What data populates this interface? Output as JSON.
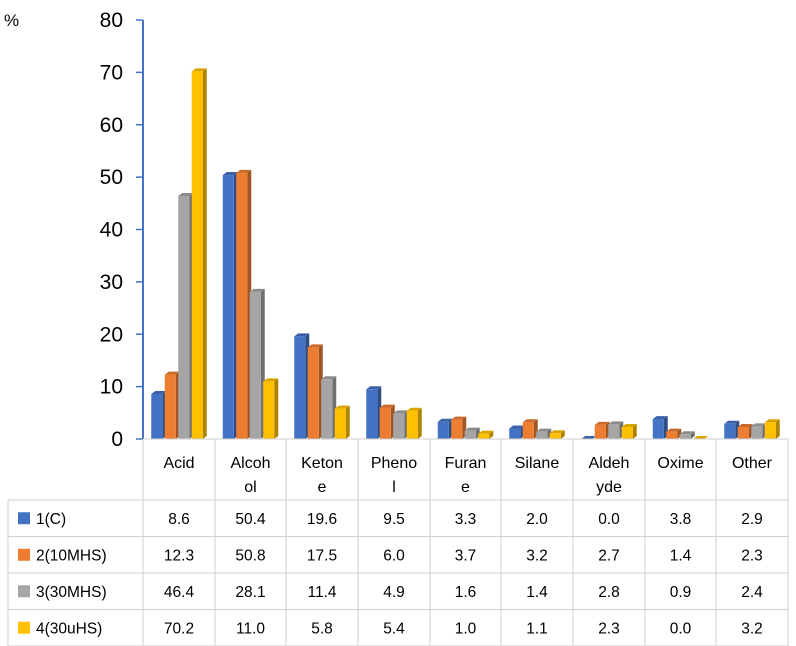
{
  "chart_data": {
    "type": "bar",
    "ylabel": "%",
    "ylim": [
      0,
      80
    ],
    "yticks": [
      "0",
      "10",
      "20",
      "30",
      "40",
      "50",
      "60",
      "70",
      "80"
    ],
    "categories": [
      "Acid",
      "Alcohol",
      "Ketone",
      "Phenol",
      "Furane",
      "Silane",
      "Aldehyde",
      "Oxime",
      "Other"
    ],
    "category_labels": [
      [
        "Acid"
      ],
      [
        "Alcoh",
        "ol"
      ],
      [
        "Keton",
        "e"
      ],
      [
        "Pheno",
        "l"
      ],
      [
        "Furan",
        "e"
      ],
      [
        "Silane"
      ],
      [
        "Aldeh",
        "yde"
      ],
      [
        "Oxime"
      ],
      [
        "Other"
      ]
    ],
    "series": [
      {
        "name": "1(C)",
        "color": "#4472C4",
        "values": [
          8.6,
          50.4,
          19.6,
          9.5,
          3.3,
          2.0,
          0.0,
          3.8,
          2.9
        ],
        "labels": [
          "8.6",
          "50.4",
          "19.6",
          "9.5",
          "3.3",
          "2.0",
          "0.0",
          "3.8",
          "2.9"
        ]
      },
      {
        "name": "2(10MHS)",
        "color": "#ED7D31",
        "values": [
          12.3,
          50.8,
          17.5,
          6.0,
          3.7,
          3.2,
          2.7,
          1.4,
          2.3
        ],
        "labels": [
          "12.3",
          "50.8",
          "17.5",
          "6.0",
          "3.7",
          "3.2",
          "2.7",
          "1.4",
          "2.3"
        ]
      },
      {
        "name": "3(30MHS)",
        "color": "#A5A5A5",
        "values": [
          46.4,
          28.1,
          11.4,
          4.9,
          1.6,
          1.4,
          2.8,
          0.9,
          2.4
        ],
        "labels": [
          "46.4",
          "28.1",
          "11.4",
          "4.9",
          "1.6",
          "1.4",
          "2.8",
          "0.9",
          "2.4"
        ]
      },
      {
        "name": "4(30uHS)",
        "color": "#FFC000",
        "values": [
          70.2,
          11.0,
          5.8,
          5.4,
          1.0,
          1.1,
          2.3,
          0.0,
          3.2
        ],
        "labels": [
          "70.2",
          "11.0",
          "5.8",
          "5.4",
          "1.0",
          "1.1",
          "2.3",
          "0.0",
          "3.2"
        ]
      }
    ],
    "grid": false,
    "legend": "data-table",
    "style": "3d-bar"
  }
}
